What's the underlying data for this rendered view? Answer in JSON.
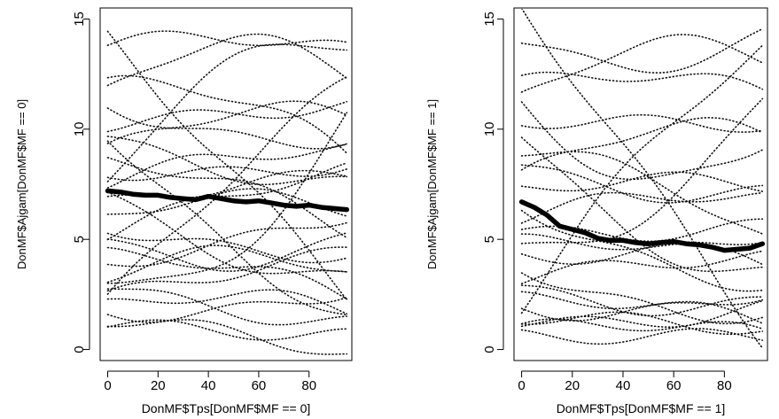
{
  "chart_data": [
    {
      "type": "line",
      "panel": "left",
      "xlabel": "DonMF$Tps[DonMF$MF == 0]",
      "ylabel": "DonMF$Ajgam[DonMF$MF == 0]",
      "xlim": [
        -3,
        97
      ],
      "ylim": [
        -0.5,
        15.5
      ],
      "x_ticks": [
        0,
        20,
        40,
        60,
        80
      ],
      "y_ticks": [
        0,
        5,
        10,
        15
      ],
      "grid": false,
      "mean_series": {
        "x": [
          0,
          5,
          10,
          15,
          20,
          25,
          30,
          35,
          40,
          45,
          50,
          55,
          60,
          65,
          70,
          75,
          80,
          85,
          90,
          95
        ],
        "y": [
          7.2,
          7.15,
          7.05,
          7.0,
          7.0,
          6.9,
          6.85,
          6.8,
          6.95,
          6.85,
          6.75,
          6.7,
          6.75,
          6.65,
          6.55,
          6.5,
          6.55,
          6.45,
          6.4,
          6.35
        ]
      },
      "individual_series": [
        {
          "y0": 13.8,
          "y1": 13.6,
          "bend": 0.5
        },
        {
          "y0": 12.0,
          "y1": 8.8,
          "bend": 1.2
        },
        {
          "y0": 11.8,
          "y1": 12.6,
          "bend": 1.8
        },
        {
          "y0": 11.2,
          "y1": 9.6,
          "bend": -0.8
        },
        {
          "y0": 10.2,
          "y1": 11.1,
          "bend": 0.0
        },
        {
          "y0": 9.6,
          "y1": 7.5,
          "bend": -0.5
        },
        {
          "y0": 9.0,
          "y1": 10.6,
          "bend": 1.0
        },
        {
          "y0": 8.6,
          "y1": 5.4,
          "bend": 0.6
        },
        {
          "y0": 8.1,
          "y1": 8.4,
          "bend": -0.3
        },
        {
          "y0": 7.6,
          "y1": 9.1,
          "bend": 0.4
        },
        {
          "y0": 7.0,
          "y1": 3.2,
          "bend": -0.9
        },
        {
          "y0": 6.6,
          "y1": 7.9,
          "bend": 0.2
        },
        {
          "y0": 6.1,
          "y1": 6.4,
          "bend": 0.7
        },
        {
          "y0": 5.6,
          "y1": 4.3,
          "bend": -0.4
        },
        {
          "y0": 5.2,
          "y1": 8.2,
          "bend": 0.3
        },
        {
          "y0": 4.8,
          "y1": 5.0,
          "bend": -1.0
        },
        {
          "y0": 4.3,
          "y1": 2.4,
          "bend": 0.5
        },
        {
          "y0": 3.9,
          "y1": 6.1,
          "bend": -0.2
        },
        {
          "y0": 3.4,
          "y1": 3.6,
          "bend": 0.9
        },
        {
          "y0": 2.9,
          "y1": 1.2,
          "bend": -0.3
        },
        {
          "y0": 2.4,
          "y1": 4.4,
          "bend": 0.1
        },
        {
          "y0": 2.0,
          "y1": 1.8,
          "bend": 0.6
        },
        {
          "y0": 1.7,
          "y1": 2.7,
          "bend": -0.5
        },
        {
          "y0": 1.4,
          "y1": -0.2,
          "bend": 0.2
        },
        {
          "y0": 1.1,
          "y1": 0.6,
          "bend": 0.0
        },
        {
          "y0": 2.2,
          "y1": 12.2,
          "bend": 0.5
        },
        {
          "y0": 14.2,
          "y1": 2.5,
          "bend": 0.0
        },
        {
          "y0": 7.8,
          "y1": 13.9,
          "bend": 2.0
        },
        {
          "y0": 9.8,
          "y1": 1.5,
          "bend": -1.0
        },
        {
          "y0": 3.0,
          "y1": 10.4,
          "bend": -2.5
        }
      ]
    },
    {
      "type": "line",
      "panel": "right",
      "xlabel": "DonMF$Tps[DonMF$MF == 1]",
      "ylabel": "DonMF$Ajgam[DonMF$MF == 1]",
      "xlim": [
        -3,
        97
      ],
      "ylim": [
        -0.5,
        15.5
      ],
      "x_ticks": [
        0,
        20,
        40,
        60,
        80
      ],
      "y_ticks": [
        0,
        5,
        10,
        15
      ],
      "grid": false,
      "mean_series": {
        "x": [
          0,
          5,
          10,
          15,
          20,
          25,
          30,
          35,
          40,
          45,
          50,
          55,
          60,
          65,
          70,
          75,
          80,
          85,
          90,
          95
        ],
        "y": [
          6.7,
          6.45,
          6.1,
          5.6,
          5.45,
          5.3,
          5.05,
          4.95,
          4.95,
          4.85,
          4.8,
          4.85,
          4.9,
          4.8,
          4.75,
          4.65,
          4.5,
          4.55,
          4.6,
          4.8
        ]
      },
      "individual_series": [
        {
          "y0": 13.9,
          "y1": 14.2,
          "bend": -1.2
        },
        {
          "y0": 12.1,
          "y1": 11.7,
          "bend": 0.6
        },
        {
          "y0": 11.5,
          "y1": 13.3,
          "bend": 1.4
        },
        {
          "y0": 10.4,
          "y1": 10.2,
          "bend": 0.0
        },
        {
          "y0": 9.1,
          "y1": 5.1,
          "bend": 0.8
        },
        {
          "y0": 8.3,
          "y1": 7.1,
          "bend": -0.6
        },
        {
          "y0": 7.8,
          "y1": 9.8,
          "bend": 1.2
        },
        {
          "y0": 7.3,
          "y1": 7.5,
          "bend": 0.3
        },
        {
          "y0": 6.6,
          "y1": 2.9,
          "bend": -0.7
        },
        {
          "y0": 6.0,
          "y1": 6.9,
          "bend": 0.5
        },
        {
          "y0": 5.3,
          "y1": 5.6,
          "bend": -0.2
        },
        {
          "y0": 4.9,
          "y1": 3.9,
          "bend": 0.4
        },
        {
          "y0": 4.3,
          "y1": 5.2,
          "bend": -0.4
        },
        {
          "y0": 3.8,
          "y1": 1.6,
          "bend": -0.8
        },
        {
          "y0": 3.2,
          "y1": 4.2,
          "bend": 0.2
        },
        {
          "y0": 2.7,
          "y1": 2.1,
          "bend": -0.5
        },
        {
          "y0": 2.3,
          "y1": 1.3,
          "bend": 0.3
        },
        {
          "y0": 1.9,
          "y1": 2.6,
          "bend": -0.6
        },
        {
          "y0": 1.5,
          "y1": 0.9,
          "bend": 0.1
        },
        {
          "y0": 1.2,
          "y1": 1.9,
          "bend": -0.3
        },
        {
          "y0": 0.9,
          "y1": 0.7,
          "bend": 0.4
        },
        {
          "y0": 0.6,
          "y1": 0.6,
          "bend": 0.0
        },
        {
          "y0": 15.6,
          "y1": 0.4,
          "bend": 0.0
        },
        {
          "y0": 2.0,
          "y1": 13.8,
          "bend": 1.0
        },
        {
          "y0": 9.7,
          "y1": 3.4,
          "bend": -1.6
        },
        {
          "y0": 4.5,
          "y1": 11.2,
          "bend": -1.8
        },
        {
          "y0": 11.0,
          "y1": 9.3,
          "bend": -2.4
        }
      ]
    }
  ]
}
